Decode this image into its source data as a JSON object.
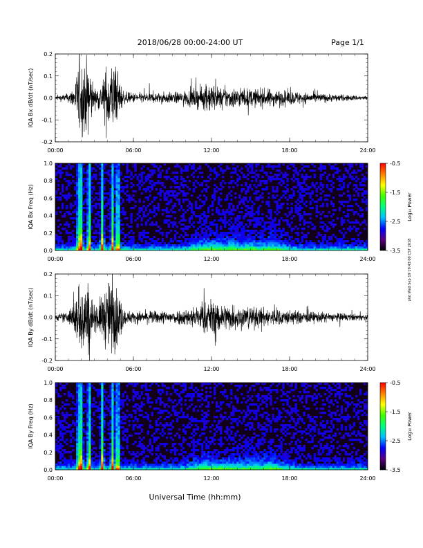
{
  "header": {
    "title": "2018/06/28  00:00-24:00 UT",
    "page": "Page 1/1"
  },
  "side_note": "plot Wed Sep 19 19:43:00 CST 2018",
  "xlabel": "Universal Time (hh:mm)",
  "colors": {
    "line": "#000000",
    "spectro_bg": "#120018",
    "colorbar": [
      "#000000",
      "#5a0080",
      "#0000ff",
      "#00c0ff",
      "#00ff80",
      "#40ff00",
      "#ffff00",
      "#ff8000",
      "#ff0000"
    ]
  },
  "chart_data": [
    {
      "type": "line",
      "ylabel": "IQA Bx dB/dt (nT/sec)",
      "ylim": [
        -0.2,
        0.2
      ],
      "yticks": [
        "0.2",
        "0.1",
        "0.0",
        "-0.1",
        "-0.2"
      ],
      "xticks": [
        "00:00",
        "06:00",
        "12:00",
        "18:00",
        "24:00"
      ],
      "xlim_hours": [
        0,
        24
      ],
      "envelope": {
        "x_hours": [
          0,
          1.0,
          1.5,
          1.8,
          2.3,
          2.6,
          3.0,
          3.6,
          4.0,
          4.4,
          4.8,
          5.3,
          6.0,
          8.0,
          9.5,
          10.5,
          11.5,
          12.0,
          12.5,
          13.5,
          14.5,
          15.5,
          16.5,
          17.5,
          18.5,
          19.5,
          20.5,
          21.5,
          22.5,
          24
        ],
        "amplitude": [
          0.015,
          0.03,
          0.09,
          0.25,
          0.25,
          0.25,
          0.06,
          0.1,
          0.25,
          0.25,
          0.15,
          0.04,
          0.035,
          0.035,
          0.04,
          0.06,
          0.08,
          0.11,
          0.07,
          0.07,
          0.065,
          0.06,
          0.06,
          0.05,
          0.045,
          0.035,
          0.03,
          0.025,
          0.02,
          0.015
        ]
      }
    },
    {
      "type": "heatmap",
      "ylabel": "IQA Bx Freq (Hz)",
      "ylim": [
        0,
        1.0
      ],
      "yticks": [
        "1.0",
        "0.8",
        "0.6",
        "0.4",
        "0.2",
        "0.0"
      ],
      "xticks": [
        "00:00",
        "06:00",
        "12:00",
        "18:00",
        "24:00"
      ],
      "xlim_hours": [
        0,
        24
      ],
      "colorbar_label": "Log₁₀ Power",
      "colorbar_ticks": [
        "-0.5",
        "-1.5",
        "-2.5",
        "-3.5"
      ],
      "colorbar_range": [
        -3.5,
        -0.5
      ],
      "bursts_hours": [
        1.8,
        2.0,
        2.6,
        3.6,
        4.4,
        4.8
      ],
      "lowfreq_hours": [
        11.5,
        12.3,
        13.5,
        15.0,
        16.5
      ]
    },
    {
      "type": "line",
      "ylabel": "IQA By dB/dt (nT/sec)",
      "ylim": [
        -0.2,
        0.2
      ],
      "yticks": [
        "0.2",
        "0.1",
        "0.0",
        "-0.1",
        "-0.2"
      ],
      "xticks": [
        "00:00",
        "06:00",
        "12:00",
        "18:00",
        "24:00"
      ],
      "xlim_hours": [
        0,
        24
      ],
      "envelope": {
        "x_hours": [
          0,
          1.0,
          1.5,
          1.8,
          2.3,
          2.6,
          3.0,
          3.6,
          4.0,
          4.4,
          4.8,
          5.3,
          6.0,
          8.0,
          9.5,
          10.5,
          11.5,
          12.0,
          12.5,
          13.5,
          14.5,
          15.5,
          16.5,
          17.5,
          18.5,
          19.5,
          20.5,
          21.5,
          22.5,
          24
        ],
        "amplitude": [
          0.02,
          0.04,
          0.12,
          0.25,
          0.25,
          0.25,
          0.08,
          0.15,
          0.25,
          0.25,
          0.2,
          0.05,
          0.04,
          0.045,
          0.05,
          0.07,
          0.1,
          0.13,
          0.1,
          0.09,
          0.08,
          0.07,
          0.06,
          0.055,
          0.045,
          0.04,
          0.035,
          0.03,
          0.025,
          0.02
        ]
      }
    },
    {
      "type": "heatmap",
      "ylabel": "IQA By Freq (Hz)",
      "ylim": [
        0,
        1.0
      ],
      "yticks": [
        "1.0",
        "0.8",
        "0.6",
        "0.4",
        "0.2",
        "0.0"
      ],
      "xticks": [
        "00:00",
        "06:00",
        "12:00",
        "18:00",
        "24:00"
      ],
      "xlim_hours": [
        0,
        24
      ],
      "colorbar_label": "Log₁₀ Power",
      "colorbar_ticks": [
        "-0.5",
        "-1.5",
        "-2.5",
        "-3.5"
      ],
      "colorbar_range": [
        -3.5,
        -0.5
      ],
      "bursts_hours": [
        1.8,
        2.0,
        2.6,
        3.6,
        4.4,
        4.8
      ],
      "lowfreq_hours": [
        11.5,
        12.3,
        13.5,
        15.0,
        16.5
      ]
    }
  ]
}
